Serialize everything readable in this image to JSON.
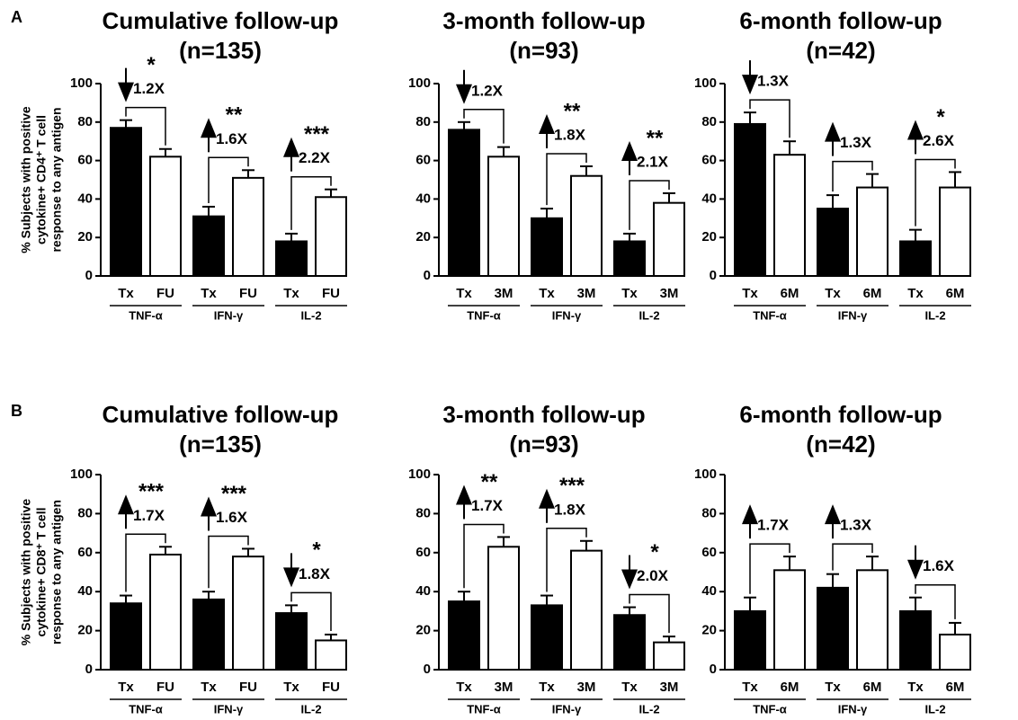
{
  "chart_data": [
    {
      "type": "bar",
      "panel_label": "A",
      "ylabel": [
        "% Subjects with positive",
        "cytokine+ CD4⁺ T cell",
        "response to any antigen"
      ],
      "title": "Cumulative follow-up",
      "subtitle": "(n=135)",
      "categories": [
        "Tx",
        "FU",
        "Tx",
        "FU",
        "Tx",
        "FU"
      ],
      "groups": [
        "TNF-α",
        "IFN-γ",
        "IL-2"
      ],
      "values": [
        77,
        62,
        31,
        51,
        18,
        41
      ],
      "errors": [
        4,
        4,
        5,
        4,
        4,
        4
      ],
      "colors": [
        "#000000",
        "#ffffff",
        "#000000",
        "#ffffff",
        "#000000",
        "#ffffff"
      ],
      "folds": [
        "1.2X",
        "1.6X",
        "2.2X"
      ],
      "arrows": [
        "down",
        "up",
        "up"
      ],
      "stars": [
        "*",
        "**",
        "***"
      ],
      "ylim": [
        0,
        100
      ],
      "yticks": [
        0,
        20,
        40,
        60,
        80,
        100
      ]
    },
    {
      "type": "bar",
      "title": "3-month follow-up",
      "subtitle": "(n=93)",
      "categories": [
        "Tx",
        "3M",
        "Tx",
        "3M",
        "Tx",
        "3M"
      ],
      "groups": [
        "TNF-α",
        "IFN-γ",
        "IL-2"
      ],
      "values": [
        76,
        62,
        30,
        52,
        18,
        38
      ],
      "errors": [
        4,
        5,
        5,
        5,
        4,
        5
      ],
      "colors": [
        "#000000",
        "#ffffff",
        "#000000",
        "#ffffff",
        "#000000",
        "#ffffff"
      ],
      "folds": [
        "1.2X",
        "1.8X",
        "2.1X"
      ],
      "arrows": [
        "down",
        "up",
        "up"
      ],
      "stars": [
        null,
        "**",
        "**"
      ],
      "ylim": [
        0,
        100
      ],
      "yticks": [
        0,
        20,
        40,
        60,
        80,
        100
      ]
    },
    {
      "type": "bar",
      "title": "6-month follow-up",
      "subtitle": "(n=42)",
      "categories": [
        "Tx",
        "6M",
        "Tx",
        "6M",
        "Tx",
        "6M"
      ],
      "groups": [
        "TNF-α",
        "IFN-γ",
        "IL-2"
      ],
      "values": [
        79,
        63,
        35,
        46,
        18,
        46
      ],
      "errors": [
        6,
        7,
        7,
        7,
        6,
        8
      ],
      "colors": [
        "#000000",
        "#ffffff",
        "#000000",
        "#ffffff",
        "#000000",
        "#ffffff"
      ],
      "folds": [
        "1.3X",
        "1.3X",
        "2.6X"
      ],
      "arrows": [
        "down",
        "up",
        "up"
      ],
      "stars": [
        null,
        null,
        "*"
      ],
      "ylim": [
        0,
        100
      ],
      "yticks": [
        0,
        20,
        40,
        60,
        80,
        100
      ]
    },
    {
      "type": "bar",
      "panel_label": "B",
      "ylabel": [
        "% Subjects with positive",
        "cytokine+ CD8⁺ T cell",
        "response to any antigen"
      ],
      "title": "Cumulative follow-up",
      "subtitle": "(n=135)",
      "categories": [
        "Tx",
        "FU",
        "Tx",
        "FU",
        "Tx",
        "FU"
      ],
      "groups": [
        "TNF-α",
        "IFN-γ",
        "IL-2"
      ],
      "values": [
        34,
        59,
        36,
        58,
        29,
        15
      ],
      "errors": [
        4,
        4,
        4,
        4,
        4,
        3
      ],
      "colors": [
        "#000000",
        "#ffffff",
        "#000000",
        "#ffffff",
        "#000000",
        "#ffffff"
      ],
      "folds": [
        "1.7X",
        "1.6X",
        "1.8X"
      ],
      "arrows": [
        "up",
        "up",
        "down"
      ],
      "stars": [
        "***",
        "***",
        "*"
      ],
      "ylim": [
        0,
        100
      ],
      "yticks": [
        0,
        20,
        40,
        60,
        80,
        100
      ]
    },
    {
      "type": "bar",
      "title": "3-month follow-up",
      "subtitle": "(n=93)",
      "categories": [
        "Tx",
        "3M",
        "Tx",
        "3M",
        "Tx",
        "3M"
      ],
      "groups": [
        "TNF-α",
        "IFN-γ",
        "IL-2"
      ],
      "values": [
        35,
        63,
        33,
        61,
        28,
        14
      ],
      "errors": [
        5,
        5,
        5,
        5,
        4,
        3
      ],
      "colors": [
        "#000000",
        "#ffffff",
        "#000000",
        "#ffffff",
        "#000000",
        "#ffffff"
      ],
      "folds": [
        "1.7X",
        "1.8X",
        "2.0X"
      ],
      "arrows": [
        "up",
        "up",
        "down"
      ],
      "stars": [
        "**",
        "***",
        "*"
      ],
      "ylim": [
        0,
        100
      ],
      "yticks": [
        0,
        20,
        40,
        60,
        80,
        100
      ]
    },
    {
      "type": "bar",
      "title": "6-month follow-up",
      "subtitle": "(n=42)",
      "categories": [
        "Tx",
        "6M",
        "Tx",
        "6M",
        "Tx",
        "6M"
      ],
      "groups": [
        "TNF-α",
        "IFN-γ",
        "IL-2"
      ],
      "values": [
        30,
        51,
        42,
        51,
        30,
        18
      ],
      "errors": [
        7,
        7,
        7,
        7,
        7,
        6
      ],
      "colors": [
        "#000000",
        "#ffffff",
        "#000000",
        "#ffffff",
        "#000000",
        "#ffffff"
      ],
      "folds": [
        "1.7X",
        "1.3X",
        "1.6X"
      ],
      "arrows": [
        "up",
        "up",
        "down"
      ],
      "stars": [
        null,
        null,
        null
      ],
      "ylim": [
        0,
        100
      ],
      "yticks": [
        0,
        20,
        40,
        60,
        80,
        100
      ]
    }
  ]
}
